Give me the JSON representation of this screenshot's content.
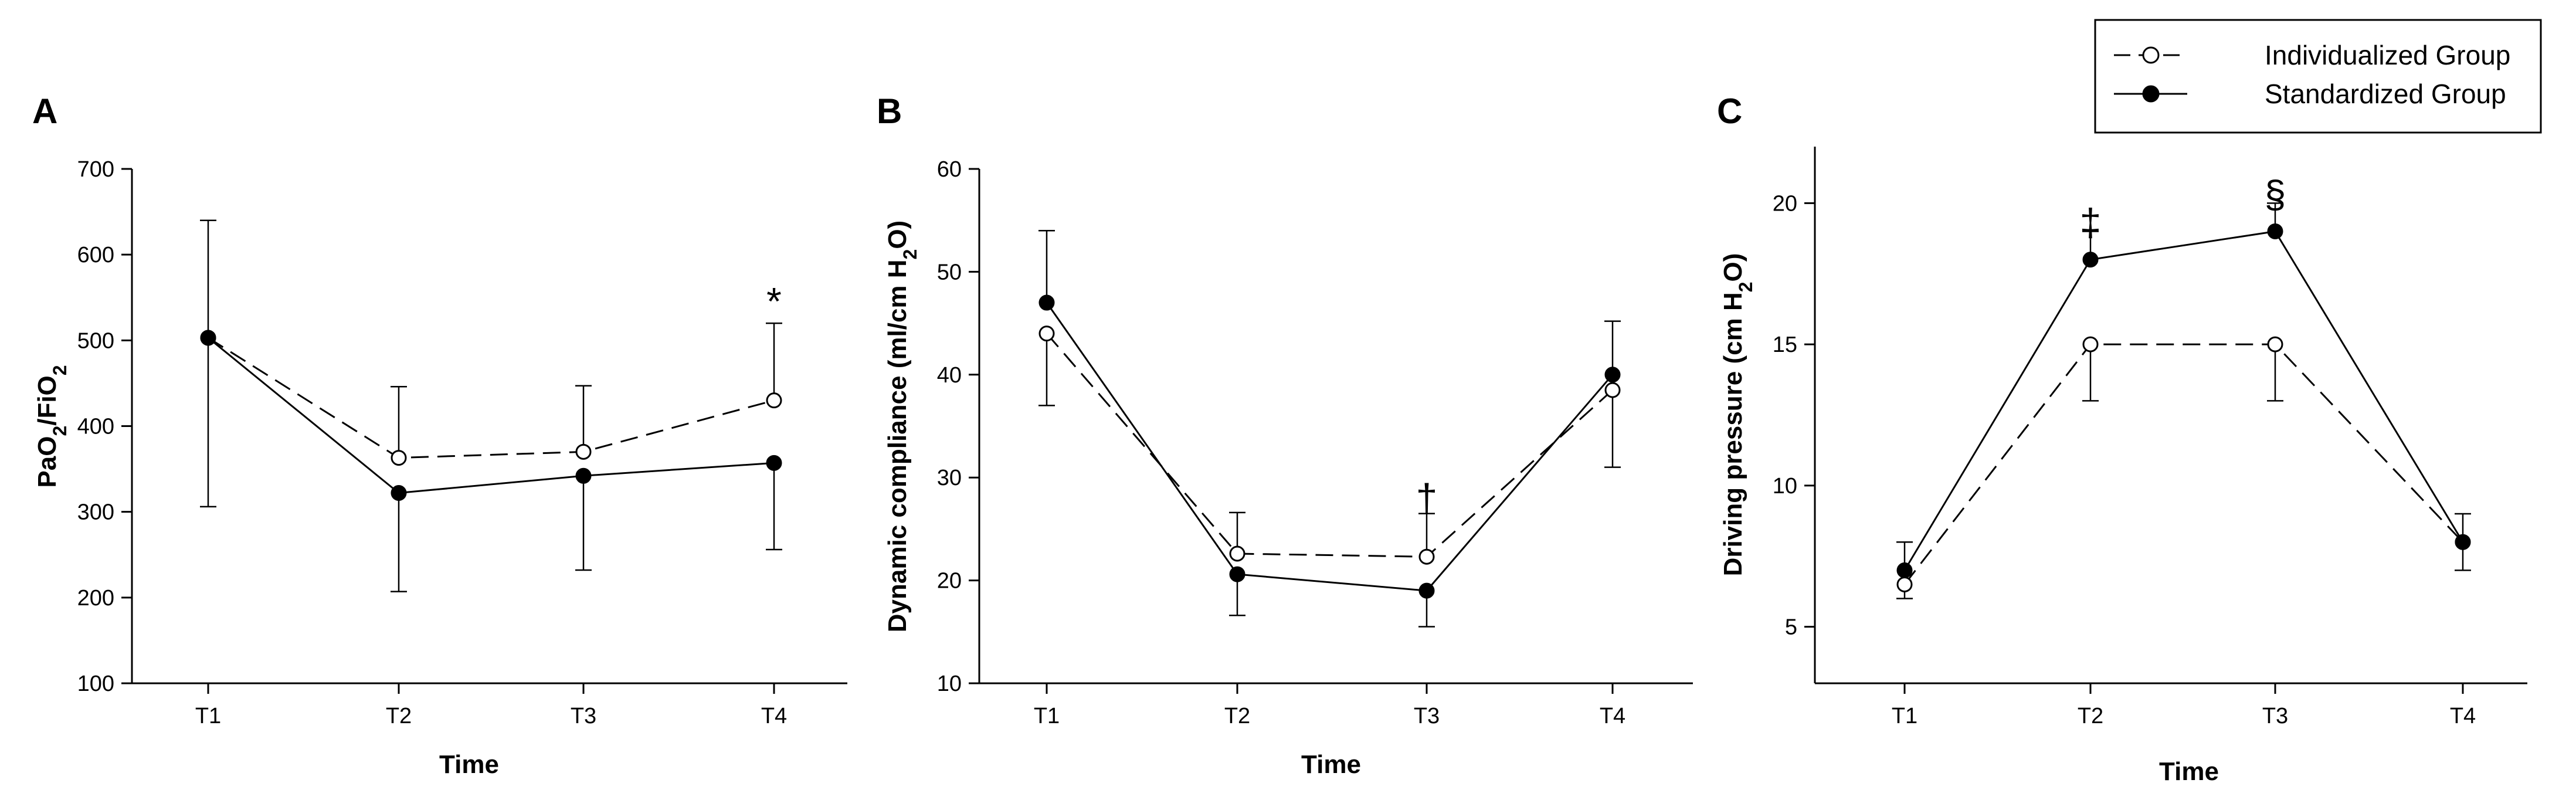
{
  "legend": {
    "items": [
      {
        "name": "Individualized Group",
        "style": "dashed",
        "marker": "open"
      },
      {
        "name": "Standardized Group",
        "style": "solid",
        "marker": "filled"
      }
    ]
  },
  "chart_data": [
    {
      "type": "line",
      "panel": "A",
      "xlabel": "Time",
      "ylabel": "PaO2/FiO2",
      "categories": [
        "T1",
        "T2",
        "T3",
        "T4"
      ],
      "ylim": [
        100,
        700
      ],
      "yticks": [
        100,
        200,
        300,
        400,
        500,
        600,
        700
      ],
      "series": [
        {
          "name": "Individualized Group",
          "values": [
            503,
            363,
            370,
            430
          ],
          "err_up": [
            137,
            83,
            77,
            90
          ],
          "err_down": [
            0,
            0,
            0,
            0
          ]
        },
        {
          "name": "Standardized Group",
          "values": [
            503,
            322,
            342,
            357
          ],
          "err_up": [
            0,
            0,
            0,
            0
          ],
          "err_down": [
            197,
            115,
            110,
            101
          ]
        }
      ],
      "annotations": [
        {
          "text": "*",
          "category": "T4",
          "y": 545
        }
      ]
    },
    {
      "type": "line",
      "panel": "B",
      "xlabel": "Time",
      "ylabel": "Dynamic compliance (ml/cm H2O)",
      "categories": [
        "T1",
        "T2",
        "T3",
        "T4"
      ],
      "ylim": [
        10,
        60
      ],
      "yticks": [
        10,
        20,
        30,
        40,
        50,
        60
      ],
      "series": [
        {
          "name": "Individualized Group",
          "values": [
            44,
            22.6,
            22.3,
            38.5
          ],
          "err_up": [
            0,
            4,
            4.2,
            0
          ],
          "err_down": [
            7,
            0,
            0,
            7.5
          ]
        },
        {
          "name": "Standardized Group",
          "values": [
            47,
            20.6,
            19,
            40
          ],
          "err_up": [
            7,
            0,
            0,
            5.2
          ],
          "err_down": [
            0,
            4,
            3.5,
            0
          ]
        }
      ],
      "annotations": [
        {
          "text": "†",
          "category": "T3",
          "y": 28
        }
      ]
    },
    {
      "type": "line",
      "panel": "C",
      "xlabel": "Time",
      "ylabel": "Driving pressure (cm H2O)",
      "categories": [
        "T1",
        "T2",
        "T3",
        "T4"
      ],
      "ylim": [
        3,
        22
      ],
      "yticks": [
        5,
        10,
        15,
        20
      ],
      "series": [
        {
          "name": "Individualized Group",
          "values": [
            6.5,
            15,
            15,
            8
          ],
          "err_up": [
            0,
            0,
            0,
            1
          ],
          "err_down": [
            0.5,
            2,
            2,
            0
          ]
        },
        {
          "name": "Standardized Group",
          "values": [
            7,
            18,
            19,
            8
          ],
          "err_up": [
            1,
            1,
            1,
            0
          ],
          "err_down": [
            0,
            0,
            0,
            1
          ]
        }
      ],
      "annotations": [
        {
          "text": "‡",
          "category": "T2",
          "y": 19.3
        },
        {
          "text": "§",
          "category": "T3",
          "y": 20.3
        }
      ]
    }
  ]
}
